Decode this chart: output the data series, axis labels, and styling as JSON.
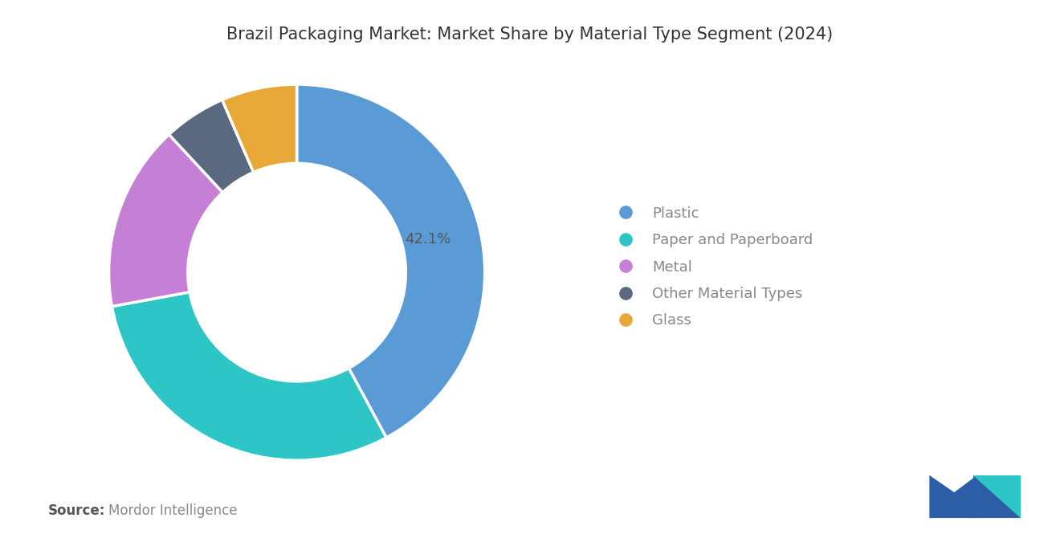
{
  "title": "Brazil Packaging Market: Market Share by Material Type Segment (2024)",
  "segments": [
    "Plastic",
    "Paper and Paperboard",
    "Metal",
    "Other Material Types",
    "Glass"
  ],
  "values": [
    42.1,
    30.0,
    16.0,
    5.4,
    6.5
  ],
  "colors": [
    "#5B9BD5",
    "#2DC5C5",
    "#C57FD4",
    "#5A6880",
    "#E8A838"
  ],
  "label_text": "42.1%",
  "source_bold": "Source:",
  "source_text": "Mordor Intelligence",
  "background_color": "#FFFFFF",
  "title_fontsize": 15,
  "legend_fontsize": 13,
  "source_fontsize": 12,
  "label_color": "#555555"
}
